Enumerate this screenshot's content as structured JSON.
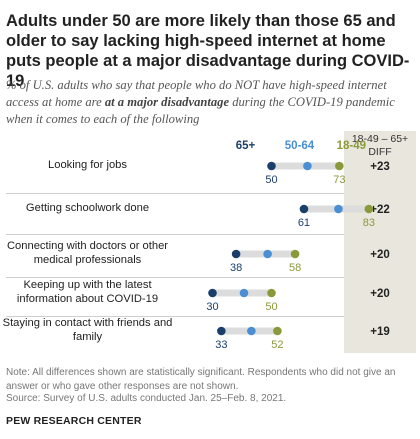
{
  "title": "Adults under 50 are more likely than those 65 and older to say lacking high-speed internet at home puts people at a major disadvantage during COVID-19",
  "subtitle": {
    "before": "% of U.S. adults who say that people who do NOT have high-speed internet access at home are ",
    "emphasis": "at a major disadvantage",
    "after": " during the COVID-19 pandemic when it comes to each of the following"
  },
  "diff_header": "18-49 – 65+ DIFF",
  "colors": {
    "age_65_plus": "#1b3f6b",
    "age_50_64": "#4a8fd4",
    "age_18_49": "#8a9a3b",
    "connector": "#dcdcdc",
    "diff_bg": "#e9e6dd"
  },
  "chart_data": {
    "type": "dot",
    "series": [
      {
        "name": "65+",
        "color": "#1b3f6b"
      },
      {
        "name": "50-64",
        "color": "#4a8fd4"
      },
      {
        "name": "18-49",
        "color": "#8a9a3b"
      }
    ],
    "categories": [
      {
        "label": "Looking for jobs",
        "values": {
          "65+": 50,
          "50-64": null,
          "18-49": 73
        },
        "labels": [
          "50",
          "73"
        ],
        "diff": "+23"
      },
      {
        "label": "Getting schoolwork done",
        "values": {
          "65+": 61,
          "50-64": null,
          "18-49": 83
        },
        "labels": [
          "61",
          "83"
        ],
        "diff": "+22"
      },
      {
        "label": "Connecting with doctors or other medical professionals",
        "values": {
          "65+": 38,
          "50-64": null,
          "18-49": 58
        },
        "labels": [
          "38",
          "58"
        ],
        "diff": "+20"
      },
      {
        "label": "Keeping up with the latest information about COVID-19",
        "values": {
          "65+": 30,
          "50-64": null,
          "18-49": 50
        },
        "labels": [
          "30",
          "50"
        ],
        "diff": "+20"
      },
      {
        "label": "Staying in contact with friends and family",
        "values": {
          "65+": 33,
          "50-64": null,
          "18-49": 52
        },
        "labels": [
          "33",
          "52"
        ],
        "diff": "+19"
      }
    ]
  },
  "note": "Note: All differences shown are statistically significant. Respondents who did not give an answer or who gave other responses are not shown.",
  "source": "Source: Survey of U.S. adults conducted Jan. 25–Feb. 8, 2021.",
  "org": "PEW RESEARCH CENTER"
}
